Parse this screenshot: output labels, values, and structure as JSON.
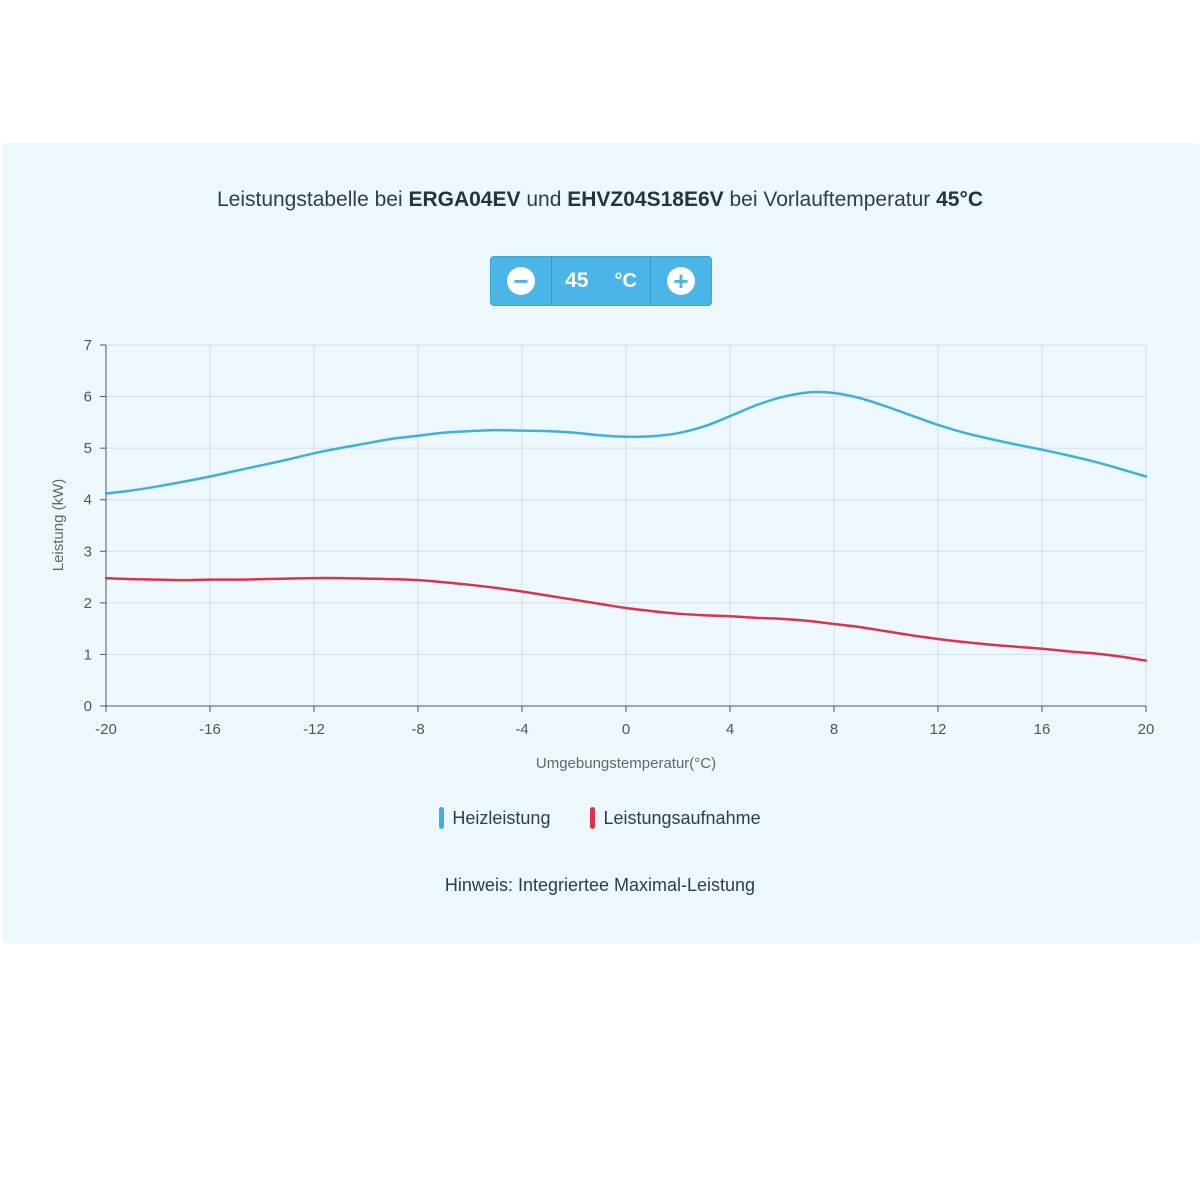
{
  "title": {
    "t1": "Leistungstabelle bei ",
    "b1": "ERGA04EV",
    "t2": " und ",
    "b2": "EHVZ04S18E6V",
    "t3": " bei Vorlauftemperatur ",
    "b3": "45°C"
  },
  "stepper": {
    "value": "45",
    "unit": "°C",
    "minus_icon": "minus-circle-icon",
    "plus_icon": "plus-circle-icon"
  },
  "note": "Hinweis: Integriertee Maximal-Leistung",
  "colors": {
    "heiz": "#3cb1e0",
    "aufnahme": "#e0314b",
    "grid": "#d6dde2",
    "axis": "#555555"
  },
  "chart_data": {
    "type": "line",
    "xlabel": "Umgebungstemperatur(°C)",
    "ylabel": "Leistung (kW)",
    "xlim": [
      -20,
      20
    ],
    "ylim": [
      0,
      7
    ],
    "xticks": [
      -20,
      -16,
      -12,
      -8,
      -4,
      0,
      4,
      8,
      12,
      16,
      20
    ],
    "yticks": [
      0,
      1,
      2,
      3,
      4,
      5,
      6,
      7
    ],
    "grid": true,
    "legend_position": "bottom",
    "x": [
      -20,
      -19,
      -18,
      -17,
      -16,
      -15,
      -14,
      -13,
      -12,
      -11,
      -10,
      -9,
      -8,
      -7,
      -6,
      -5,
      -4,
      -3,
      -2,
      -1,
      0,
      1,
      2,
      3,
      4,
      5,
      6,
      7,
      8,
      9,
      10,
      11,
      12,
      13,
      14,
      15,
      16,
      17,
      18,
      19,
      20
    ],
    "series": [
      {
        "name": "Heizleistung",
        "values": [
          4.12,
          4.18,
          4.26,
          4.35,
          4.45,
          4.56,
          4.67,
          4.78,
          4.9,
          5.0,
          5.09,
          5.18,
          5.24,
          5.3,
          5.33,
          5.35,
          5.34,
          5.33,
          5.3,
          5.25,
          5.22,
          5.23,
          5.29,
          5.42,
          5.62,
          5.83,
          5.99,
          6.08,
          6.07,
          5.97,
          5.81,
          5.63,
          5.45,
          5.3,
          5.18,
          5.07,
          4.97,
          4.86,
          4.74,
          4.6,
          4.45
        ]
      },
      {
        "name": "Leistungsaufnahme",
        "values": [
          2.48,
          2.46,
          2.45,
          2.44,
          2.45,
          2.45,
          2.46,
          2.47,
          2.48,
          2.48,
          2.47,
          2.46,
          2.44,
          2.4,
          2.35,
          2.29,
          2.22,
          2.14,
          2.06,
          1.98,
          1.9,
          1.84,
          1.79,
          1.76,
          1.74,
          1.71,
          1.69,
          1.65,
          1.59,
          1.53,
          1.45,
          1.37,
          1.3,
          1.24,
          1.19,
          1.15,
          1.11,
          1.06,
          1.02,
          0.96,
          0.88
        ]
      }
    ]
  }
}
